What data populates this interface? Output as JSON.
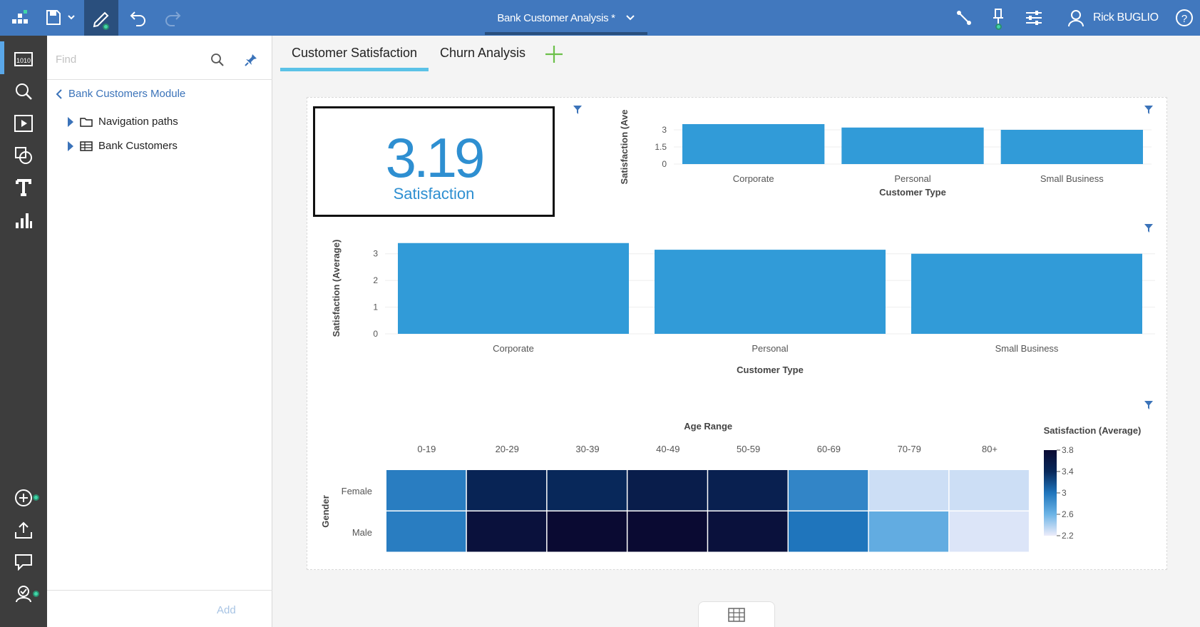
{
  "app": {
    "title": "Bank Customer Analysis *",
    "user": "Rick BUGLIO"
  },
  "sidebar": {
    "find_placeholder": "Find",
    "module_label": "Bank Customers Module",
    "tree": [
      {
        "label": "Navigation paths",
        "icon": "folder-icon"
      },
      {
        "label": "Bank Customers",
        "icon": "table-icon"
      }
    ],
    "add_label": "Add"
  },
  "tabs": [
    {
      "label": "Customer Satisfaction",
      "active": true
    },
    {
      "label": "Churn Analysis",
      "active": false
    }
  ],
  "kpi": {
    "value": "3.19",
    "label": "Satisfaction"
  },
  "colors": {
    "topbar": "#4178be",
    "accent": "#2e8fd1",
    "bar": "#319bd8",
    "tab_underline": "#5bc2e7"
  },
  "chart_data": [
    {
      "type": "bar",
      "title": "",
      "categories": [
        "Corporate",
        "Personal",
        "Small Business"
      ],
      "values": [
        3.5,
        3.2,
        3.0
      ],
      "xlabel": "Customer Type",
      "ylabel": "Satisfaction (Ave",
      "yticks": [
        "3",
        "1.5",
        "0"
      ],
      "ylim": [
        0,
        3.5
      ]
    },
    {
      "type": "bar",
      "title": "",
      "categories": [
        "Corporate",
        "Personal",
        "Small Business"
      ],
      "values": [
        3.4,
        3.15,
        3.0
      ],
      "xlabel": "Customer Type",
      "ylabel": "Satisfaction (Average)",
      "yticks": [
        "3",
        "2",
        "1",
        "0"
      ],
      "ylim": [
        0,
        3.5
      ]
    },
    {
      "type": "heatmap",
      "title": "Age Range",
      "columns": [
        "0-19",
        "20-29",
        "30-39",
        "40-49",
        "50-59",
        "60-69",
        "70-79",
        "80+"
      ],
      "rows": [
        "Female",
        "Male"
      ],
      "ylabel": "Gender",
      "legend_title": "Satisfaction (Average)",
      "legend_ticks": [
        "3.8",
        "3.4",
        "3",
        "2.6",
        "2.2"
      ],
      "legend_range": [
        2.2,
        3.8
      ],
      "values": [
        [
          2.95,
          3.45,
          3.4,
          3.55,
          3.5,
          2.9,
          2.3,
          2.3
        ],
        [
          2.95,
          3.7,
          3.85,
          3.85,
          3.7,
          3.0,
          2.65,
          2.25
        ]
      ]
    }
  ]
}
